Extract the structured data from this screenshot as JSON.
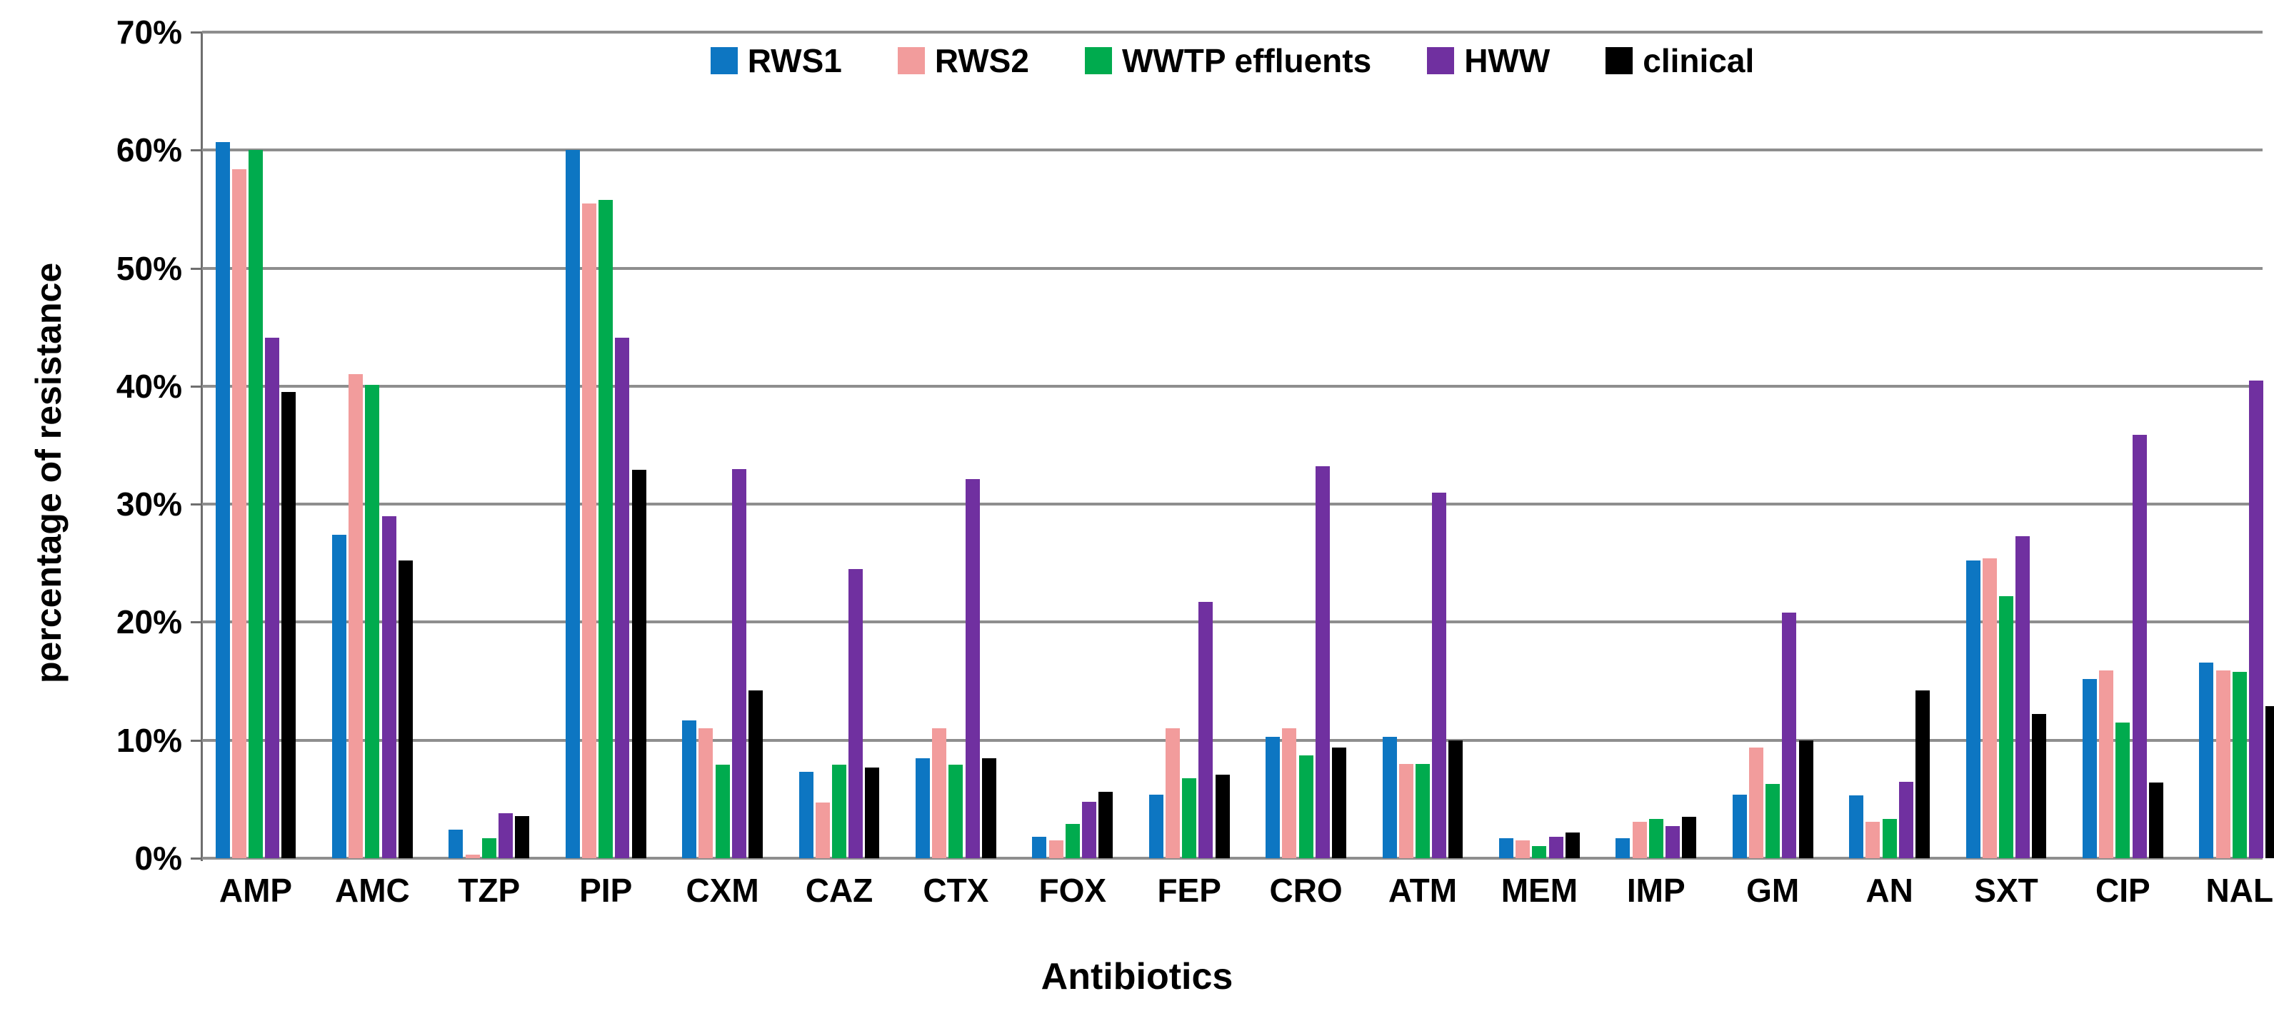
{
  "chart_data": {
    "type": "bar",
    "title": "",
    "xlabel": "Antibiotics",
    "ylabel": "percentage of resistance",
    "ylim": [
      0,
      70
    ],
    "ytick_step": 10,
    "ytick_labels": [
      "0%",
      "10%",
      "20%",
      "30%",
      "40%",
      "50%",
      "60%",
      "70%"
    ],
    "grid": true,
    "legend_position": "top-center",
    "categories": [
      "AMP",
      "AMC",
      "TZP",
      "PIP",
      "CXM",
      "CAZ",
      "CTX",
      "FOX",
      "FEP",
      "CRO",
      "ATM",
      "MEM",
      "IMP",
      "GM",
      "AN",
      "SXT",
      "CIP",
      "NAL"
    ],
    "series": [
      {
        "name": "RWS1",
        "color": "#0d76c2",
        "values": [
          60.7,
          27.4,
          2.4,
          60.0,
          11.7,
          7.3,
          8.5,
          1.8,
          5.4,
          10.3,
          10.3,
          1.7,
          1.7,
          5.4,
          5.3,
          25.2,
          15.2,
          16.6
        ]
      },
      {
        "name": "RWS2",
        "color": "#f29c9c",
        "values": [
          58.4,
          41.0,
          0.3,
          55.5,
          11.0,
          4.7,
          11.0,
          1.5,
          11.0,
          11.0,
          8.0,
          1.5,
          3.1,
          9.4,
          3.1,
          25.4,
          15.9,
          15.9
        ]
      },
      {
        "name": "WWTP effluents",
        "color": "#00ab4e",
        "values": [
          60.0,
          40.1,
          1.7,
          55.8,
          7.9,
          7.9,
          7.9,
          2.9,
          6.8,
          8.7,
          8.0,
          1.0,
          3.3,
          6.3,
          3.3,
          22.2,
          11.5,
          15.8
        ]
      },
      {
        "name": "HWW",
        "color": "#7030a0",
        "values": [
          44.1,
          29.0,
          3.8,
          44.1,
          33.0,
          24.5,
          32.1,
          4.8,
          21.7,
          33.2,
          31.0,
          1.8,
          2.7,
          20.8,
          6.5,
          27.3,
          35.9,
          40.5
        ]
      },
      {
        "name": "clinical",
        "color": "#000000",
        "values": [
          39.5,
          25.2,
          3.6,
          32.9,
          14.2,
          7.7,
          8.5,
          5.6,
          7.1,
          9.4,
          10.0,
          2.2,
          3.5,
          10.0,
          14.2,
          12.2,
          6.4,
          12.9
        ]
      }
    ],
    "colors": {
      "gridline": "#8e8e8e",
      "axis": "#6e6e6e",
      "text": "#000000",
      "background": "#ffffff"
    }
  }
}
